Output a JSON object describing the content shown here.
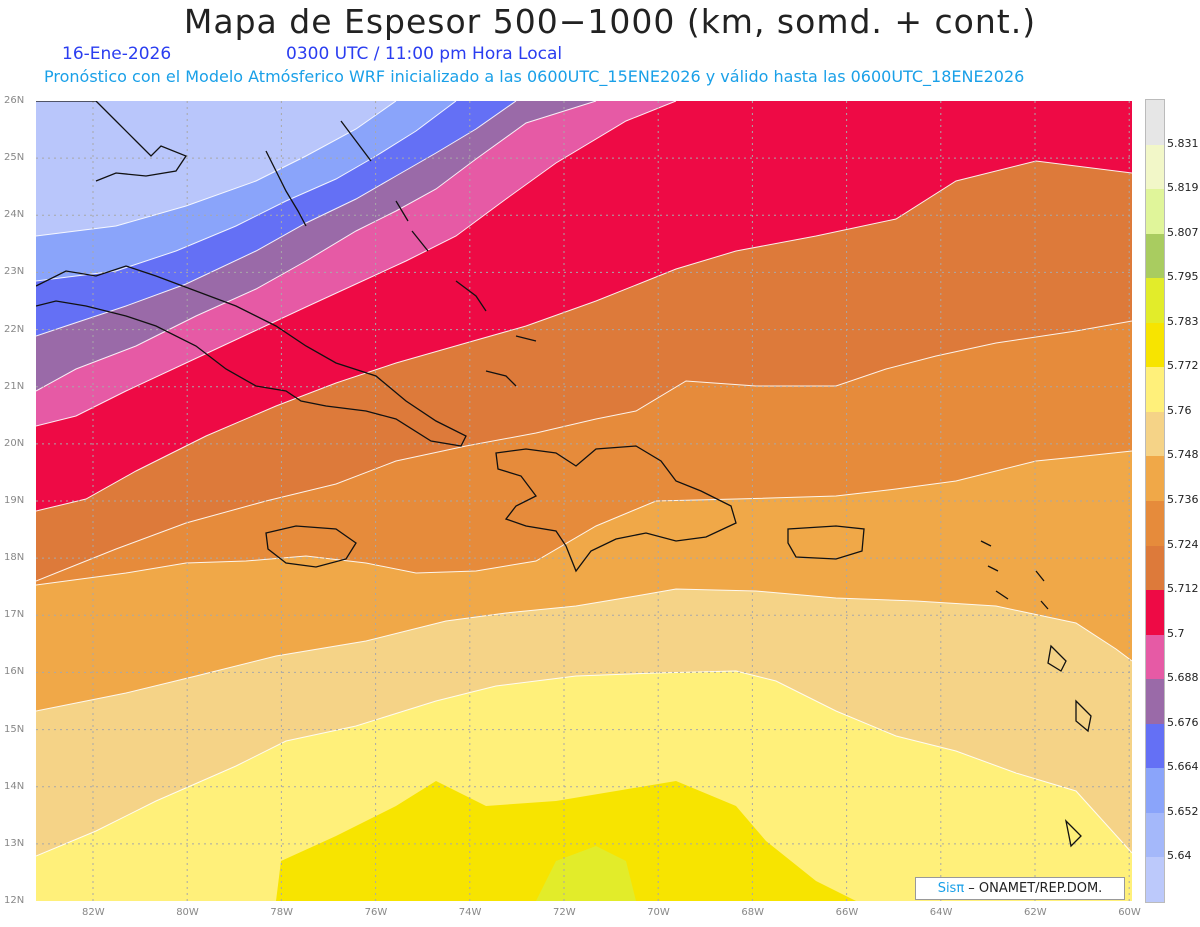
{
  "header": {
    "title": "Mapa de Espesor 500−1000 (km, somd. + cont.)",
    "date": "16-Ene-2026",
    "time": "0300 UTC / 11:00 pm Hora Local",
    "forecast": "Pronóstico con el Modelo Atmósferico WRF inicializado a las 0600UTC_15ENE2026 y válido hasta las  0600UTC_18ENE2026"
  },
  "axes": {
    "lat_labels": [
      "26N",
      "25N",
      "24N",
      "23N",
      "22N",
      "21N",
      "20N",
      "19N",
      "18N",
      "17N",
      "16N",
      "15N",
      "14N",
      "13N",
      "12N"
    ],
    "lon_labels": [
      "82W",
      "80W",
      "78W",
      "76W",
      "74W",
      "72W",
      "70W",
      "68W",
      "66W",
      "64W",
      "62W",
      "60W"
    ]
  },
  "colorbar": {
    "labels": [
      "5.831",
      "5.819",
      "5.807",
      "5.795",
      "5.783",
      "5.772",
      "5.76",
      "5.748",
      "5.736",
      "5.724",
      "5.712",
      "5.7",
      "5.688",
      "5.676",
      "5.664",
      "5.652",
      "5.64"
    ],
    "colors": [
      "#e6e6e6",
      "#f2f7c8",
      "#e0f59a",
      "#a9cc60",
      "#e2ec2a",
      "#f7e400",
      "#fff07a",
      "#f5d387",
      "#f0a848",
      "#e68b3b",
      "#dd7a3a",
      "#ee0a45",
      "#e65aa5",
      "#9a6aa8",
      "#6470f5",
      "#8aa4fa",
      "#a4b8fa",
      "#bcc9fb"
    ],
    "band_colors": {
      "le_5652": "#b9c6fb",
      "b5652_5664": "#8aa4fa",
      "b5664_5676": "#6470f5",
      "b5676_5688": "#9a6aa8",
      "b5688_5700": "#e65aa5",
      "b5700_5712": "#ee0a45",
      "b5712_5724": "#dd7a3a",
      "b5724_5736": "#e68b3b",
      "b5736_5748": "#f0a848",
      "b5748_5760": "#f5d387",
      "b5760_5772": "#fff07a",
      "b5772_5783": "#f7e400",
      "b5783_5795": "#e2ec2a"
    }
  },
  "credit": {
    "brand": "Sisπ",
    "org": " – ONAMET/REP.DOM."
  }
}
